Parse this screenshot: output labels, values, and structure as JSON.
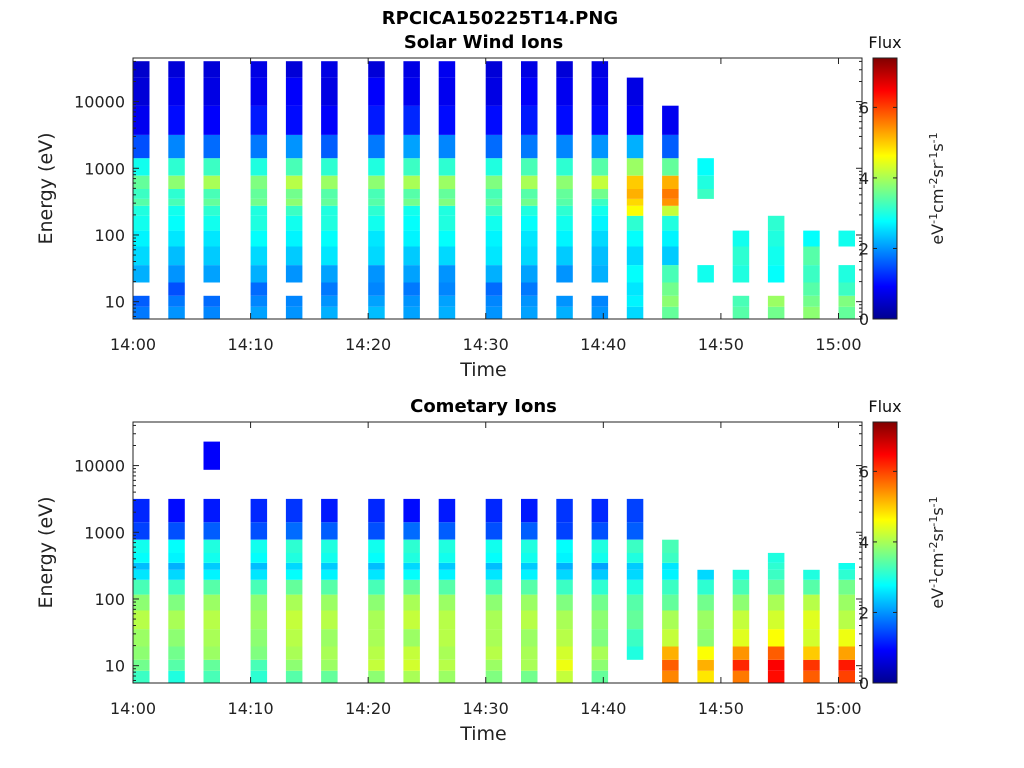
{
  "figure_title": "RPCICA150225T14.PNG",
  "chart_data": [
    {
      "type": "heatmap",
      "title": "Solar Wind Ions",
      "xlabel": "Time",
      "ylabel": "Energy (eV)",
      "y_scale": "log",
      "ylim": [
        5.5,
        45000
      ],
      "x_range_minutes": [
        "14:00",
        "15:02"
      ],
      "x_ticks": [
        "14:00",
        "14:10",
        "14:20",
        "14:30",
        "14:40",
        "14:50",
        "15:00"
      ],
      "y_ticks": [
        "10",
        "100",
        "1000",
        "10000"
      ],
      "colorbar": {
        "label": "Flux",
        "unit_label": "eV-1cm-2sr-1s-1",
        "range": [
          0,
          7.4
        ],
        "ticks": [
          "0",
          "2",
          "4",
          "6"
        ]
      },
      "times": [
        "14:00",
        "14:03",
        "14:06",
        "14:10",
        "14:13",
        "14:16",
        "14:20",
        "14:23",
        "14:26",
        "14:30",
        "14:33",
        "14:36",
        "14:39",
        "14:42",
        "14:45",
        "14:48",
        "14:51",
        "14:54",
        "14:57",
        "15:00"
      ],
      "energy_bins_eV": [
        7,
        10,
        15,
        25,
        50,
        90,
        150,
        250,
        300,
        400,
        600,
        1000,
        2000,
        5000,
        15000,
        35000
      ],
      "flux": [
        [
          1.8,
          2.0,
          1.9,
          2.1,
          2.0,
          2.2,
          2.3,
          2.1,
          2.2,
          2.0,
          2.1,
          2.2,
          2.0,
          2.5,
          3.5,
          null,
          3.4,
          3.6,
          3.8,
          3.5
        ],
        [
          1.6,
          1.8,
          1.7,
          1.9,
          1.9,
          2.0,
          2.1,
          2.0,
          2.1,
          1.9,
          2.0,
          2.0,
          1.9,
          2.7,
          3.8,
          null,
          3.3,
          3.9,
          3.6,
          3.7
        ],
        [
          null,
          1.5,
          null,
          1.7,
          null,
          1.8,
          1.9,
          1.8,
          1.9,
          1.7,
          1.8,
          null,
          null,
          2.6,
          3.6,
          null,
          null,
          null,
          3.4,
          3.2
        ],
        [
          2.2,
          2.0,
          2.1,
          2.2,
          2.0,
          2.1,
          2.0,
          2.1,
          2.0,
          2.2,
          2.1,
          2.0,
          2.2,
          2.8,
          3.3,
          2.9,
          3.0,
          2.8,
          3.2,
          3.0
        ],
        [
          2.5,
          2.3,
          2.4,
          2.5,
          2.4,
          2.6,
          2.5,
          2.4,
          2.5,
          2.6,
          2.5,
          2.4,
          2.3,
          2.5,
          2.4,
          null,
          3.1,
          2.9,
          3.4,
          null
        ],
        [
          2.7,
          2.6,
          2.6,
          2.8,
          2.7,
          2.8,
          2.6,
          2.7,
          2.8,
          2.7,
          2.6,
          2.7,
          2.5,
          2.8,
          2.7,
          null,
          2.9,
          3.0,
          2.8,
          2.9
        ],
        [
          2.9,
          2.8,
          2.9,
          3.0,
          2.9,
          3.0,
          2.9,
          2.8,
          3.0,
          2.9,
          2.8,
          2.9,
          2.7,
          3.1,
          3.0,
          null,
          null,
          3.1,
          null,
          null
        ],
        [
          3.0,
          2.9,
          3.1,
          3.0,
          3.2,
          3.0,
          3.1,
          2.9,
          3.0,
          3.2,
          3.0,
          3.1,
          2.9,
          4.6,
          4.2,
          null,
          null,
          null,
          null,
          null
        ],
        [
          3.4,
          3.3,
          3.5,
          3.6,
          3.8,
          3.5,
          3.4,
          3.6,
          3.7,
          3.5,
          3.6,
          3.4,
          3.2,
          4.9,
          5.4,
          null,
          null,
          null,
          null,
          null
        ],
        [
          3.2,
          3.1,
          3.3,
          3.5,
          3.6,
          3.4,
          3.3,
          3.4,
          3.5,
          3.3,
          3.4,
          3.5,
          3.6,
          5.2,
          5.6,
          3.2,
          null,
          null,
          null,
          null
        ],
        [
          3.5,
          3.8,
          4.0,
          3.7,
          4.1,
          3.9,
          3.8,
          4.0,
          3.9,
          3.7,
          4.0,
          3.8,
          4.2,
          5.0,
          5.2,
          3.0,
          null,
          null,
          null,
          null
        ],
        [
          2.9,
          3.1,
          3.2,
          3.0,
          3.3,
          3.1,
          3.0,
          3.2,
          3.1,
          3.0,
          3.3,
          3.1,
          3.4,
          3.9,
          3.5,
          2.8,
          null,
          null,
          null,
          null
        ],
        [
          1.5,
          1.9,
          1.7,
          1.8,
          2.0,
          1.6,
          1.8,
          2.1,
          1.9,
          1.7,
          1.8,
          1.9,
          2.0,
          2.2,
          1.6,
          null,
          null,
          null,
          null,
          null
        ],
        [
          0.8,
          1.0,
          0.9,
          1.1,
          1.0,
          0.9,
          1.1,
          1.2,
          1.0,
          1.0,
          1.1,
          1.0,
          1.0,
          0.9,
          0.8,
          null,
          null,
          null,
          null,
          null
        ],
        [
          0.6,
          0.8,
          0.7,
          0.8,
          0.9,
          0.7,
          0.9,
          0.8,
          0.8,
          0.7,
          0.9,
          0.8,
          0.8,
          0.7,
          null,
          null,
          null,
          null,
          null,
          null
        ],
        [
          0.5,
          0.6,
          0.6,
          0.7,
          0.6,
          0.7,
          0.6,
          0.7,
          0.8,
          0.6,
          0.7,
          0.6,
          0.7,
          null,
          null,
          null,
          null,
          null,
          null,
          null
        ]
      ]
    },
    {
      "type": "heatmap",
      "title": "Cometary Ions",
      "xlabel": "Time",
      "ylabel": "Energy (eV)",
      "y_scale": "log",
      "ylim": [
        5.5,
        45000
      ],
      "x_range_minutes": [
        "14:00",
        "15:02"
      ],
      "x_ticks": [
        "14:00",
        "14:10",
        "14:20",
        "14:30",
        "14:40",
        "14:50",
        "15:00"
      ],
      "y_ticks": [
        "10",
        "100",
        "1000",
        "10000"
      ],
      "colorbar": {
        "label": "Flux",
        "unit_label": "eV-1cm-2sr-1s-1",
        "range": [
          0,
          7.4
        ],
        "ticks": [
          "0",
          "2",
          "4",
          "6"
        ]
      },
      "times": [
        "14:00",
        "14:03",
        "14:06",
        "14:10",
        "14:13",
        "14:16",
        "14:20",
        "14:23",
        "14:26",
        "14:30",
        "14:33",
        "14:36",
        "14:39",
        "14:42",
        "14:45",
        "14:48",
        "14:51",
        "14:54",
        "14:57",
        "15:00"
      ],
      "energy_bins_eV": [
        7,
        10,
        15,
        25,
        50,
        90,
        150,
        250,
        300,
        400,
        600,
        1000,
        2000,
        5000,
        15000,
        35000
      ],
      "flux": [
        [
          3.2,
          3.0,
          3.3,
          3.1,
          3.4,
          3.5,
          3.8,
          4.0,
          3.9,
          3.7,
          3.6,
          4.2,
          3.5,
          null,
          5.5,
          4.8,
          5.6,
          6.4,
          5.8,
          6.0
        ],
        [
          3.6,
          3.4,
          3.5,
          3.3,
          3.8,
          3.9,
          4.2,
          4.3,
          4.1,
          3.9,
          4.0,
          4.5,
          3.8,
          null,
          5.8,
          5.2,
          6.2,
          6.5,
          6.1,
          6.3
        ],
        [
          3.8,
          3.6,
          3.9,
          3.7,
          4.0,
          4.0,
          4.1,
          4.2,
          4.0,
          4.1,
          4.0,
          4.3,
          4.0,
          3.0,
          5.2,
          4.6,
          5.4,
          5.8,
          5.0,
          5.3
        ],
        [
          3.9,
          3.8,
          4.0,
          3.8,
          4.1,
          3.9,
          4.0,
          3.9,
          4.1,
          4.0,
          3.9,
          4.1,
          3.7,
          3.2,
          4.2,
          3.8,
          4.4,
          4.6,
          4.3,
          4.5
        ],
        [
          4.1,
          4.0,
          4.1,
          3.9,
          4.2,
          4.1,
          4.0,
          4.2,
          4.1,
          4.0,
          4.1,
          4.0,
          3.8,
          3.5,
          4.0,
          3.9,
          4.2,
          4.3,
          4.4,
          4.1
        ],
        [
          3.8,
          3.7,
          3.9,
          3.8,
          4.0,
          3.9,
          3.8,
          4.0,
          3.9,
          3.8,
          3.9,
          3.7,
          3.6,
          3.4,
          3.5,
          3.6,
          3.8,
          4.0,
          4.1,
          3.9
        ],
        [
          3.3,
          3.2,
          3.4,
          3.3,
          3.5,
          3.4,
          3.3,
          3.5,
          3.4,
          3.3,
          3.4,
          3.2,
          3.1,
          3.0,
          3.2,
          3.1,
          3.3,
          3.5,
          3.4,
          3.6
        ],
        [
          2.6,
          2.5,
          2.7,
          2.6,
          2.8,
          2.7,
          2.6,
          2.8,
          2.7,
          2.6,
          2.7,
          2.5,
          2.4,
          2.5,
          2.7,
          2.5,
          3.0,
          3.2,
          3.0,
          3.1
        ],
        [
          2.3,
          2.2,
          2.4,
          2.3,
          2.5,
          2.4,
          2.3,
          2.5,
          2.4,
          2.3,
          2.4,
          2.2,
          2.1,
          2.4,
          2.6,
          null,
          null,
          3.1,
          null,
          2.9
        ],
        [
          2.8,
          2.7,
          2.9,
          2.8,
          3.0,
          2.9,
          2.8,
          3.0,
          2.9,
          2.8,
          2.9,
          2.7,
          2.9,
          3.0,
          3.2,
          null,
          null,
          3.0,
          null,
          null
        ],
        [
          2.9,
          2.8,
          3.0,
          2.9,
          3.1,
          3.0,
          2.9,
          3.1,
          3.0,
          2.9,
          3.0,
          2.8,
          3.0,
          3.2,
          3.3,
          null,
          null,
          null,
          null,
          null
        ],
        [
          1.4,
          1.5,
          1.6,
          1.5,
          1.7,
          1.6,
          1.5,
          1.7,
          1.6,
          1.5,
          1.6,
          1.4,
          1.5,
          1.6,
          null,
          null,
          null,
          null,
          null,
          null
        ],
        [
          1.2,
          1.0,
          1.1,
          1.2,
          1.3,
          1.1,
          1.2,
          1.0,
          1.1,
          1.2,
          1.1,
          1.3,
          1.2,
          1.4,
          null,
          null,
          null,
          null,
          null,
          null
        ],
        [
          null,
          null,
          null,
          null,
          null,
          null,
          null,
          null,
          null,
          null,
          null,
          null,
          null,
          null,
          null,
          null,
          null,
          null,
          null,
          null
        ],
        [
          null,
          null,
          0.9,
          null,
          null,
          null,
          null,
          null,
          null,
          null,
          null,
          null,
          null,
          null,
          null,
          null,
          null,
          null,
          null,
          null
        ],
        [
          null,
          null,
          null,
          null,
          null,
          null,
          null,
          null,
          null,
          null,
          null,
          null,
          null,
          null,
          null,
          null,
          null,
          null,
          null,
          null
        ]
      ]
    }
  ]
}
